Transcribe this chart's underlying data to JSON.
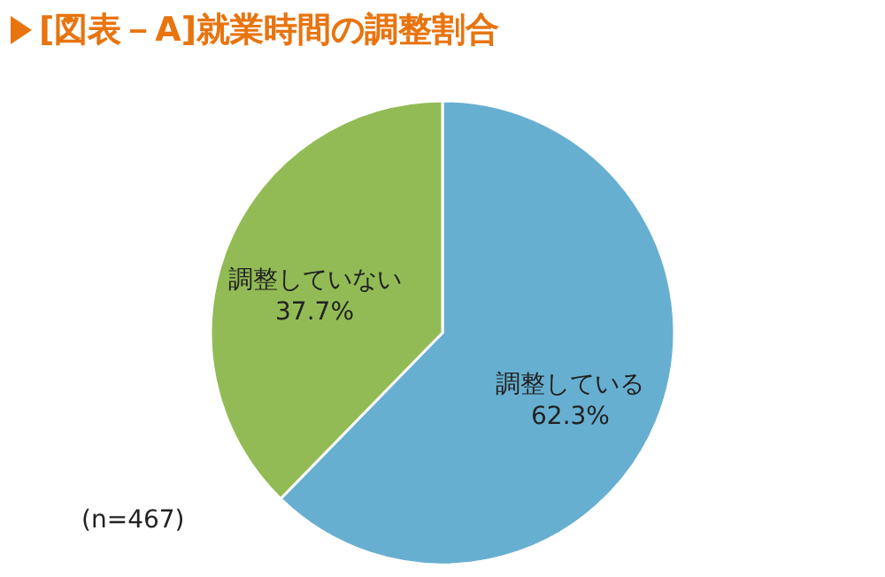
{
  "chart_data": {
    "type": "pie",
    "title": "[図表－A]就業時間の調整割合",
    "categories": [
      "調整している",
      "調整していない"
    ],
    "values": [
      62.3,
      37.7
    ],
    "colors": [
      "#67afd0",
      "#92bb55"
    ],
    "value_labels": [
      "62.3%",
      "37.7%"
    ],
    "annotations": [
      "(n=467)"
    ]
  }
}
